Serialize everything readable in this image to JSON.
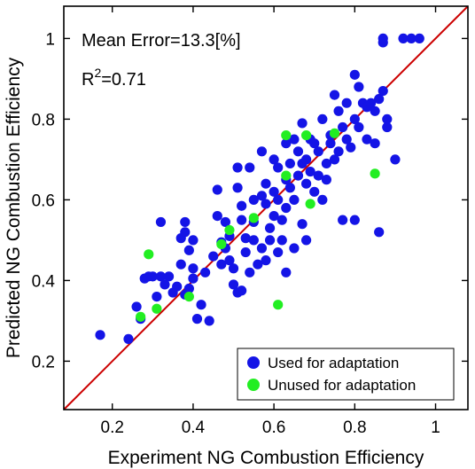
{
  "chart_data": {
    "type": "scatter",
    "xlabel": "Experiment NG Combustion Efficiency",
    "ylabel": "Predicted NG Combustion Efficiency",
    "xlim": [
      0.08,
      1.08
    ],
    "ylim": [
      0.08,
      1.08
    ],
    "xticks": [
      "0.2",
      "0.4",
      "0.6",
      "0.8",
      "1"
    ],
    "yticks": [
      "0.2",
      "0.4",
      "0.6",
      "0.8",
      "1"
    ],
    "annotations": {
      "mean_error": "Mean Error=13.3[%]",
      "r2_prefix": "R",
      "r2_sup": "2",
      "r2_value": "=0.71"
    },
    "reference_line": {
      "label": "",
      "from": [
        0.08,
        0.08
      ],
      "to": [
        1.08,
        1.08
      ],
      "color": "#cc0000"
    },
    "legend": {
      "position": "bottom-right"
    },
    "series": [
      {
        "name": "Used for adaptation",
        "color": "#1414e6",
        "points": [
          [
            0.17,
            0.265
          ],
          [
            0.24,
            0.255
          ],
          [
            0.26,
            0.335
          ],
          [
            0.27,
            0.305
          ],
          [
            0.28,
            0.405
          ],
          [
            0.29,
            0.41
          ],
          [
            0.3,
            0.41
          ],
          [
            0.31,
            0.36
          ],
          [
            0.32,
            0.545
          ],
          [
            0.32,
            0.41
          ],
          [
            0.33,
            0.39
          ],
          [
            0.34,
            0.41
          ],
          [
            0.35,
            0.37
          ],
          [
            0.36,
            0.385
          ],
          [
            0.37,
            0.44
          ],
          [
            0.37,
            0.505
          ],
          [
            0.38,
            0.545
          ],
          [
            0.38,
            0.52
          ],
          [
            0.38,
            0.365
          ],
          [
            0.39,
            0.38
          ],
          [
            0.39,
            0.475
          ],
          [
            0.4,
            0.5
          ],
          [
            0.4,
            0.43
          ],
          [
            0.4,
            0.405
          ],
          [
            0.41,
            0.305
          ],
          [
            0.42,
            0.34
          ],
          [
            0.43,
            0.42
          ],
          [
            0.44,
            0.3
          ],
          [
            0.45,
            0.46
          ],
          [
            0.46,
            0.625
          ],
          [
            0.46,
            0.56
          ],
          [
            0.47,
            0.495
          ],
          [
            0.47,
            0.44
          ],
          [
            0.48,
            0.545
          ],
          [
            0.48,
            0.48
          ],
          [
            0.49,
            0.51
          ],
          [
            0.49,
            0.45
          ],
          [
            0.5,
            0.43
          ],
          [
            0.5,
            0.39
          ],
          [
            0.51,
            0.68
          ],
          [
            0.51,
            0.63
          ],
          [
            0.51,
            0.37
          ],
          [
            0.52,
            0.585
          ],
          [
            0.52,
            0.55
          ],
          [
            0.52,
            0.375
          ],
          [
            0.53,
            0.505
          ],
          [
            0.53,
            0.47
          ],
          [
            0.54,
            0.68
          ],
          [
            0.54,
            0.42
          ],
          [
            0.55,
            0.6
          ],
          [
            0.55,
            0.545
          ],
          [
            0.55,
            0.5
          ],
          [
            0.56,
            0.44
          ],
          [
            0.57,
            0.72
          ],
          [
            0.57,
            0.61
          ],
          [
            0.57,
            0.48
          ],
          [
            0.58,
            0.64
          ],
          [
            0.58,
            0.59
          ],
          [
            0.58,
            0.45
          ],
          [
            0.59,
            0.53
          ],
          [
            0.59,
            0.5
          ],
          [
            0.6,
            0.7
          ],
          [
            0.6,
            0.62
          ],
          [
            0.6,
            0.56
          ],
          [
            0.61,
            0.68
          ],
          [
            0.61,
            0.6
          ],
          [
            0.61,
            0.47
          ],
          [
            0.62,
            0.5
          ],
          [
            0.62,
            0.55
          ],
          [
            0.63,
            0.74
          ],
          [
            0.63,
            0.65
          ],
          [
            0.63,
            0.58
          ],
          [
            0.63,
            0.42
          ],
          [
            0.64,
            0.69
          ],
          [
            0.64,
            0.63
          ],
          [
            0.65,
            0.75
          ],
          [
            0.65,
            0.6
          ],
          [
            0.65,
            0.48
          ],
          [
            0.66,
            0.72
          ],
          [
            0.66,
            0.66
          ],
          [
            0.67,
            0.79
          ],
          [
            0.67,
            0.69
          ],
          [
            0.67,
            0.54
          ],
          [
            0.68,
            0.7
          ],
          [
            0.68,
            0.64
          ],
          [
            0.68,
            0.5
          ],
          [
            0.69,
            0.75
          ],
          [
            0.69,
            0.67
          ],
          [
            0.7,
            0.74
          ],
          [
            0.7,
            0.62
          ],
          [
            0.71,
            0.72
          ],
          [
            0.71,
            0.66
          ],
          [
            0.72,
            0.6
          ],
          [
            0.72,
            0.8
          ],
          [
            0.73,
            0.69
          ],
          [
            0.73,
            0.65
          ],
          [
            0.74,
            0.76
          ],
          [
            0.74,
            0.74
          ],
          [
            0.75,
            0.86
          ],
          [
            0.75,
            0.7
          ],
          [
            0.76,
            0.82
          ],
          [
            0.76,
            0.72
          ],
          [
            0.77,
            0.55
          ],
          [
            0.77,
            0.78
          ],
          [
            0.78,
            0.84
          ],
          [
            0.78,
            0.75
          ],
          [
            0.79,
            0.73
          ],
          [
            0.8,
            0.91
          ],
          [
            0.8,
            0.8
          ],
          [
            0.8,
            0.55
          ],
          [
            0.81,
            0.88
          ],
          [
            0.81,
            0.78
          ],
          [
            0.82,
            0.84
          ],
          [
            0.83,
            0.83
          ],
          [
            0.83,
            0.75
          ],
          [
            0.84,
            0.84
          ],
          [
            0.85,
            0.82
          ],
          [
            0.85,
            0.74
          ],
          [
            0.86,
            0.85
          ],
          [
            0.86,
            0.52
          ],
          [
            0.87,
            0.87
          ],
          [
            0.87,
            0.99
          ],
          [
            0.87,
            1.0
          ],
          [
            0.88,
            0.78
          ],
          [
            0.88,
            0.8
          ],
          [
            0.9,
            0.7
          ],
          [
            0.92,
            1.0
          ],
          [
            0.94,
            1.0
          ],
          [
            0.96,
            1.0
          ]
        ]
      },
      {
        "name": "Unused for adaptation",
        "color": "#22ee22",
        "points": [
          [
            0.27,
            0.31
          ],
          [
            0.29,
            0.465
          ],
          [
            0.31,
            0.33
          ],
          [
            0.39,
            0.36
          ],
          [
            0.47,
            0.49
          ],
          [
            0.49,
            0.525
          ],
          [
            0.55,
            0.555
          ],
          [
            0.61,
            0.34
          ],
          [
            0.63,
            0.76
          ],
          [
            0.63,
            0.66
          ],
          [
            0.68,
            0.76
          ],
          [
            0.69,
            0.59
          ],
          [
            0.75,
            0.765
          ],
          [
            0.85,
            0.665
          ]
        ]
      }
    ]
  }
}
